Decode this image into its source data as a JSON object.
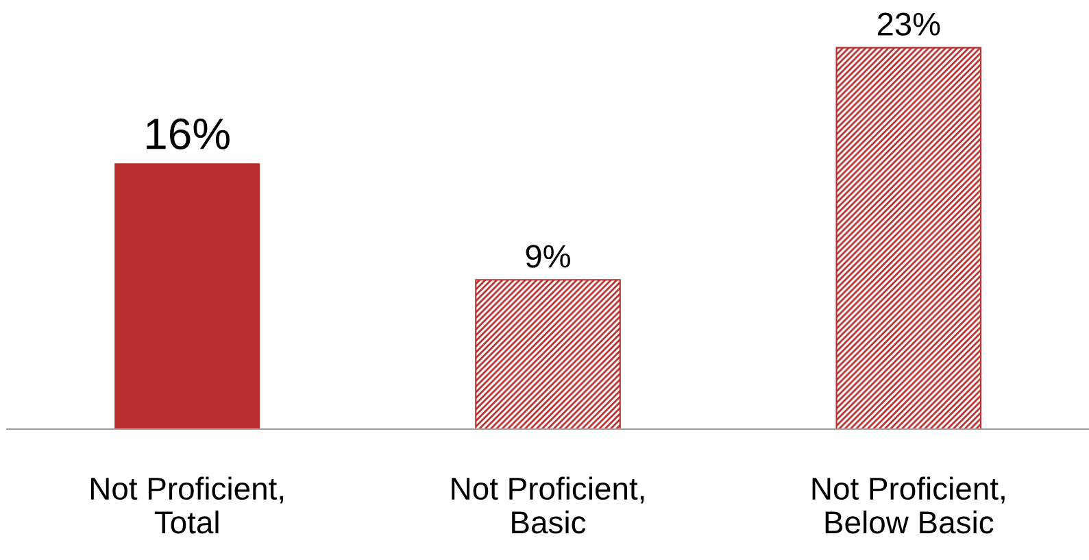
{
  "chart_data": {
    "type": "bar",
    "categories": [
      "Not Proficient,\nTotal",
      "Not Proficient,\nBasic",
      "Not Proficient,\nBelow Basic"
    ],
    "values": [
      16,
      9,
      23
    ],
    "colors": [
      "#b72e2c",
      "#b72e2c",
      "#b72e2c"
    ],
    "data_labels": true,
    "value_labels": [
      "16%",
      "9%",
      "23%"
    ],
    "grid": false,
    "legend": false
  }
}
